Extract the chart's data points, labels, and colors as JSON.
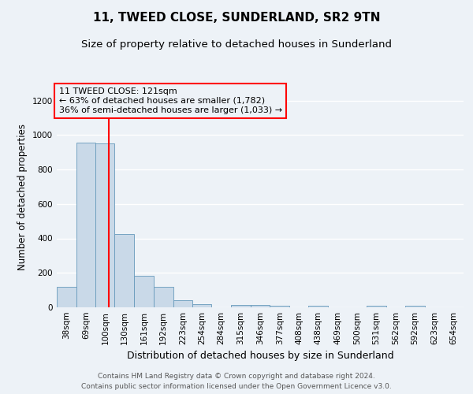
{
  "title": "11, TWEED CLOSE, SUNDERLAND, SR2 9TN",
  "subtitle": "Size of property relative to detached houses in Sunderland",
  "xlabel": "Distribution of detached houses by size in Sunderland",
  "ylabel": "Number of detached properties",
  "footer1": "Contains HM Land Registry data © Crown copyright and database right 2024.",
  "footer2": "Contains public sector information licensed under the Open Government Licence v3.0.",
  "annotation_line1": "11 TWEED CLOSE: 121sqm",
  "annotation_line2": "← 63% of detached houses are smaller (1,782)",
  "annotation_line3": "36% of semi-detached houses are larger (1,033) →",
  "bar_color": "#c9d9e8",
  "bar_edge_color": "#6699bb",
  "red_line_x": 121,
  "categories": [
    "38sqm",
    "69sqm",
    "100sqm",
    "130sqm",
    "161sqm",
    "192sqm",
    "223sqm",
    "254sqm",
    "284sqm",
    "315sqm",
    "346sqm",
    "377sqm",
    "408sqm",
    "438sqm",
    "469sqm",
    "500sqm",
    "531sqm",
    "562sqm",
    "592sqm",
    "623sqm",
    "654sqm"
  ],
  "bin_edges": [
    38,
    69,
    100,
    130,
    161,
    192,
    223,
    254,
    284,
    315,
    346,
    377,
    408,
    438,
    469,
    500,
    531,
    562,
    592,
    623,
    654,
    685
  ],
  "values": [
    120,
    955,
    950,
    425,
    185,
    120,
    40,
    20,
    0,
    15,
    15,
    10,
    0,
    10,
    0,
    0,
    10,
    0,
    10,
    0,
    0
  ],
  "ylim": [
    0,
    1280
  ],
  "yticks": [
    0,
    200,
    400,
    600,
    800,
    1000,
    1200
  ],
  "background_color": "#edf2f7",
  "grid_color": "#ffffff",
  "title_fontsize": 11,
  "subtitle_fontsize": 9.5,
  "axis_label_fontsize": 8.5,
  "tick_fontsize": 7.5,
  "annotation_fontsize": 8,
  "footer_fontsize": 6.5
}
